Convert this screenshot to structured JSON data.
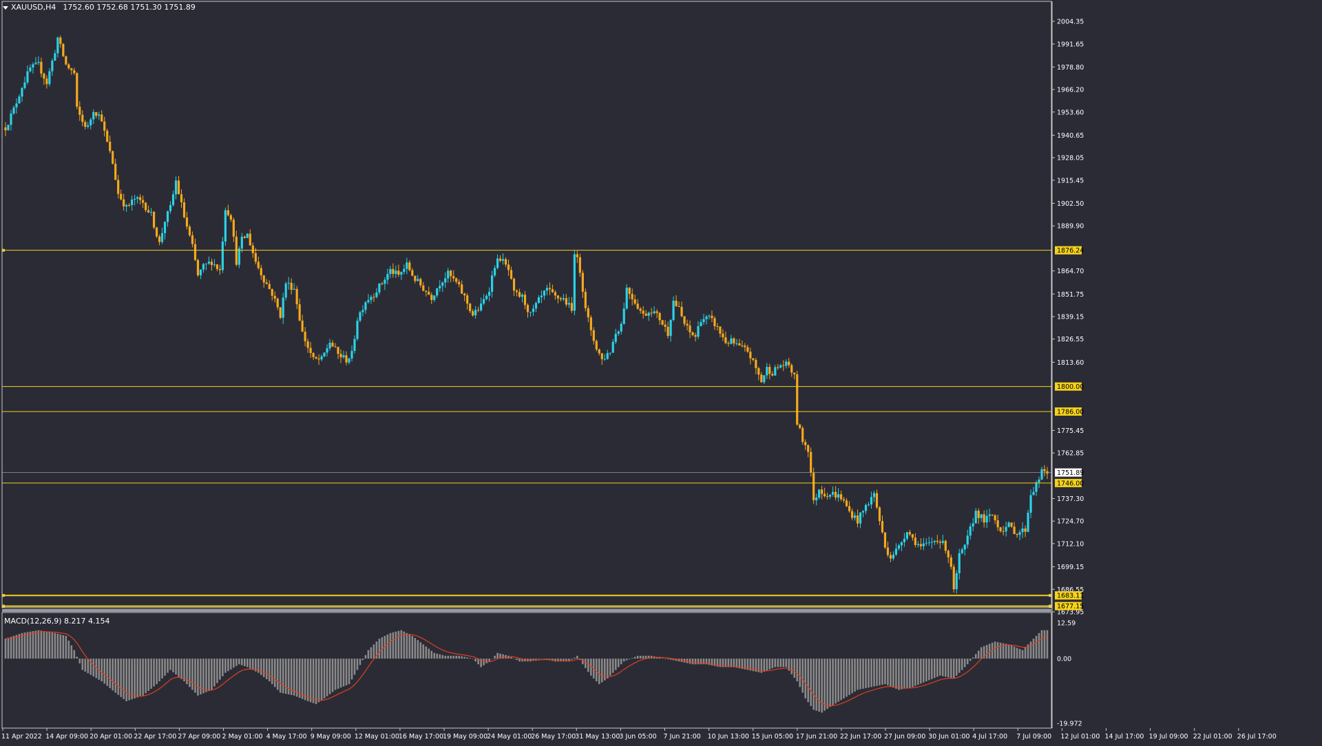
{
  "header": {
    "symbol": "XAUUSD,H4",
    "quotes": "1752.60 1752.68 1751.30 1751.89"
  },
  "macd": {
    "label": "MACD(12,26,9) 8.217 4.154",
    "ticks": [
      "12.59",
      "0.00",
      "-19.972"
    ]
  },
  "colors": {
    "background": "#2b2b36",
    "bull": "#2bd2e6",
    "bear": "#f6a91b",
    "level_line": "#f4d21b",
    "level_label_bg": "#f4d21b",
    "histogram": "#8a8a8a",
    "signal": "#e0401c",
    "axis_text": "#ffffff",
    "frame": "#c8c8c8"
  },
  "chart_data": {
    "type": "candlestick",
    "ylim": [
      1673.95,
      2004.35
    ],
    "y_ticks": [
      "2004.35",
      "1991.65",
      "1978.80",
      "1966.20",
      "1953.60",
      "1940.65",
      "1928.05",
      "1915.45",
      "1902.50",
      "1889.90",
      "1864.70",
      "1851.75",
      "1839.15",
      "1826.55",
      "1813.60",
      "1775.45",
      "1762.85",
      "1737.30",
      "1724.70",
      "1712.10",
      "1699.15",
      "1686.55",
      "1673.95"
    ],
    "x_ticks": [
      "11 Apr 2022",
      "14 Apr 09:00",
      "20 Apr 01:00",
      "22 Apr 17:00",
      "27 Apr 09:00",
      "2 May 01:00",
      "4 May 17:00",
      "9 May 09:00",
      "12 May 01:00",
      "16 May 17:00",
      "19 May 09:00",
      "24 May 01:00",
      "26 May 17:00",
      "31 May 13:00",
      "3 Jun 05:00",
      "7 Jun 21:00",
      "10 Jun 13:00",
      "15 Jun 05:00",
      "17 Jun 21:00",
      "22 Jun 17:00",
      "27 Jun 09:00",
      "30 Jun 01:00",
      "4 Jul 17:00",
      "7 Jul 09:00",
      "12 Jul 01:00",
      "14 Jul 17:00",
      "19 Jul 09:00",
      "22 Jul 01:00",
      "26 Jul 17:00"
    ],
    "levels": [
      "1876.24",
      "1800.00",
      "1786.00",
      "1746.00",
      "1683.11",
      "1677.15"
    ],
    "current_price": "1751.89",
    "price_path": [
      [
        0,
        1945
      ],
      [
        3,
        1955
      ],
      [
        6,
        1968
      ],
      [
        9,
        1978
      ],
      [
        12,
        1980
      ],
      [
        15,
        1970
      ],
      [
        18,
        1988
      ],
      [
        19,
        1995
      ],
      [
        22,
        1980
      ],
      [
        25,
        1975
      ],
      [
        26,
        1955
      ],
      [
        28,
        1948
      ],
      [
        30,
        1945
      ],
      [
        32,
        1955
      ],
      [
        35,
        1950
      ],
      [
        36,
        1942
      ],
      [
        39,
        1925
      ],
      [
        41,
        1908
      ],
      [
        44,
        1900
      ],
      [
        47,
        1905
      ],
      [
        50,
        1903
      ],
      [
        53,
        1896
      ],
      [
        56,
        1880
      ],
      [
        58,
        1893
      ],
      [
        60,
        1900
      ],
      [
        62,
        1915
      ],
      [
        65,
        1895
      ],
      [
        68,
        1878
      ],
      [
        70,
        1862
      ],
      [
        72,
        1867
      ],
      [
        75,
        1870
      ],
      [
        78,
        1865
      ],
      [
        80,
        1900
      ],
      [
        82,
        1895
      ],
      [
        84,
        1870
      ],
      [
        86,
        1882
      ],
      [
        88,
        1885
      ],
      [
        91,
        1870
      ],
      [
        94,
        1860
      ],
      [
        97,
        1852
      ],
      [
        100,
        1840
      ],
      [
        102,
        1858
      ],
      [
        105,
        1855
      ],
      [
        108,
        1830
      ],
      [
        110,
        1822
      ],
      [
        112,
        1815
      ],
      [
        115,
        1815
      ],
      [
        118,
        1825
      ],
      [
        121,
        1818
      ],
      [
        124,
        1815
      ],
      [
        126,
        1818
      ],
      [
        128,
        1838
      ],
      [
        131,
        1848
      ],
      [
        134,
        1852
      ],
      [
        137,
        1858
      ],
      [
        140,
        1865
      ],
      [
        143,
        1862
      ],
      [
        146,
        1868
      ],
      [
        149,
        1860
      ],
      [
        152,
        1855
      ],
      [
        155,
        1850
      ],
      [
        158,
        1858
      ],
      [
        161,
        1863
      ],
      [
        164,
        1858
      ],
      [
        167,
        1850
      ],
      [
        170,
        1840
      ],
      [
        173,
        1845
      ],
      [
        176,
        1855
      ],
      [
        178,
        1868
      ],
      [
        180,
        1872
      ],
      [
        183,
        1865
      ],
      [
        185,
        1852
      ],
      [
        188,
        1850
      ],
      [
        191,
        1840
      ],
      [
        194,
        1848
      ],
      [
        197,
        1854
      ],
      [
        200,
        1850
      ],
      [
        203,
        1849
      ],
      [
        205,
        1845
      ],
      [
        206,
        1842
      ],
      [
        207,
        1876
      ],
      [
        209,
        1865
      ],
      [
        211,
        1845
      ],
      [
        213,
        1830
      ],
      [
        215,
        1822
      ],
      [
        217,
        1815
      ],
      [
        220,
        1820
      ],
      [
        222,
        1830
      ],
      [
        224,
        1835
      ],
      [
        226,
        1855
      ],
      [
        228,
        1850
      ],
      [
        230,
        1845
      ],
      [
        232,
        1840
      ],
      [
        235,
        1843
      ],
      [
        238,
        1838
      ],
      [
        241,
        1830
      ],
      [
        243,
        1848
      ],
      [
        245,
        1843
      ],
      [
        247,
        1835
      ],
      [
        249,
        1830
      ],
      [
        251,
        1828
      ],
      [
        253,
        1838
      ],
      [
        256,
        1838
      ],
      [
        258,
        1835
      ],
      [
        260,
        1830
      ],
      [
        262,
        1825
      ],
      [
        264,
        1825
      ],
      [
        267,
        1822
      ],
      [
        270,
        1820
      ],
      [
        273,
        1810
      ],
      [
        275,
        1803
      ],
      [
        277,
        1810
      ],
      [
        279,
        1808
      ],
      [
        282,
        1812
      ],
      [
        285,
        1812
      ],
      [
        287,
        1805
      ],
      [
        288,
        1780
      ],
      [
        290,
        1770
      ],
      [
        292,
        1765
      ],
      [
        293,
        1752
      ],
      [
        294,
        1735
      ],
      [
        296,
        1743
      ],
      [
        298,
        1740
      ],
      [
        301,
        1740
      ],
      [
        304,
        1738
      ],
      [
        307,
        1730
      ],
      [
        310,
        1725
      ],
      [
        313,
        1733
      ],
      [
        316,
        1740
      ],
      [
        318,
        1725
      ],
      [
        320,
        1710
      ],
      [
        322,
        1705
      ],
      [
        325,
        1710
      ],
      [
        328,
        1720
      ],
      [
        330,
        1715
      ],
      [
        333,
        1710
      ],
      [
        336,
        1712
      ],
      [
        339,
        1715
      ],
      [
        342,
        1710
      ],
      [
        344,
        1700
      ],
      [
        345,
        1685
      ],
      [
        347,
        1705
      ],
      [
        349,
        1710
      ],
      [
        351,
        1720
      ],
      [
        353,
        1730
      ],
      [
        356,
        1725
      ],
      [
        359,
        1728
      ],
      [
        362,
        1720
      ],
      [
        365,
        1722
      ],
      [
        368,
        1718
      ],
      [
        371,
        1720
      ],
      [
        373,
        1740
      ],
      [
        375,
        1745
      ],
      [
        377,
        1752
      ]
    ],
    "macd_path": [
      [
        0,
        7
      ],
      [
        6,
        9
      ],
      [
        12,
        10
      ],
      [
        18,
        9
      ],
      [
        22,
        8
      ],
      [
        25,
        3
      ],
      [
        28,
        -4
      ],
      [
        35,
        -8
      ],
      [
        40,
        -12
      ],
      [
        44,
        -15
      ],
      [
        50,
        -13
      ],
      [
        55,
        -9
      ],
      [
        60,
        -4
      ],
      [
        65,
        -8
      ],
      [
        70,
        -13
      ],
      [
        75,
        -11
      ],
      [
        80,
        -5
      ],
      [
        85,
        -2
      ],
      [
        88,
        -3
      ],
      [
        92,
        -5
      ],
      [
        96,
        -8
      ],
      [
        100,
        -12
      ],
      [
        105,
        -13
      ],
      [
        110,
        -15
      ],
      [
        113,
        -16
      ],
      [
        116,
        -14
      ],
      [
        120,
        -11
      ],
      [
        125,
        -9
      ],
      [
        128,
        -4
      ],
      [
        132,
        3
      ],
      [
        136,
        7
      ],
      [
        140,
        9
      ],
      [
        144,
        10
      ],
      [
        148,
        8
      ],
      [
        152,
        5
      ],
      [
        156,
        2
      ],
      [
        160,
        1
      ],
      [
        165,
        1
      ],
      [
        170,
        0
      ],
      [
        173,
        -3
      ],
      [
        176,
        -1
      ],
      [
        179,
        2
      ],
      [
        183,
        1
      ],
      [
        187,
        -1
      ],
      [
        191,
        -1
      ],
      [
        195,
        0
      ],
      [
        200,
        -1
      ],
      [
        205,
        -1
      ],
      [
        208,
        1
      ],
      [
        210,
        -2
      ],
      [
        213,
        -6
      ],
      [
        216,
        -9
      ],
      [
        219,
        -7
      ],
      [
        222,
        -4
      ],
      [
        225,
        -1
      ],
      [
        230,
        1
      ],
      [
        235,
        1
      ],
      [
        240,
        0
      ],
      [
        245,
        -1
      ],
      [
        250,
        -2
      ],
      [
        255,
        -2
      ],
      [
        260,
        -3
      ],
      [
        265,
        -3
      ],
      [
        270,
        -4
      ],
      [
        275,
        -5
      ],
      [
        280,
        -3
      ],
      [
        284,
        -3
      ],
      [
        288,
        -8
      ],
      [
        291,
        -14
      ],
      [
        294,
        -18
      ],
      [
        297,
        -19
      ],
      [
        300,
        -17
      ],
      [
        305,
        -14
      ],
      [
        310,
        -11
      ],
      [
        315,
        -10
      ],
      [
        320,
        -9
      ],
      [
        325,
        -11
      ],
      [
        330,
        -10
      ],
      [
        335,
        -8
      ],
      [
        340,
        -6
      ],
      [
        345,
        -7
      ],
      [
        350,
        -2
      ],
      [
        355,
        4
      ],
      [
        360,
        6
      ],
      [
        365,
        5
      ],
      [
        370,
        3
      ],
      [
        375,
        8
      ],
      [
        377,
        10
      ]
    ]
  }
}
